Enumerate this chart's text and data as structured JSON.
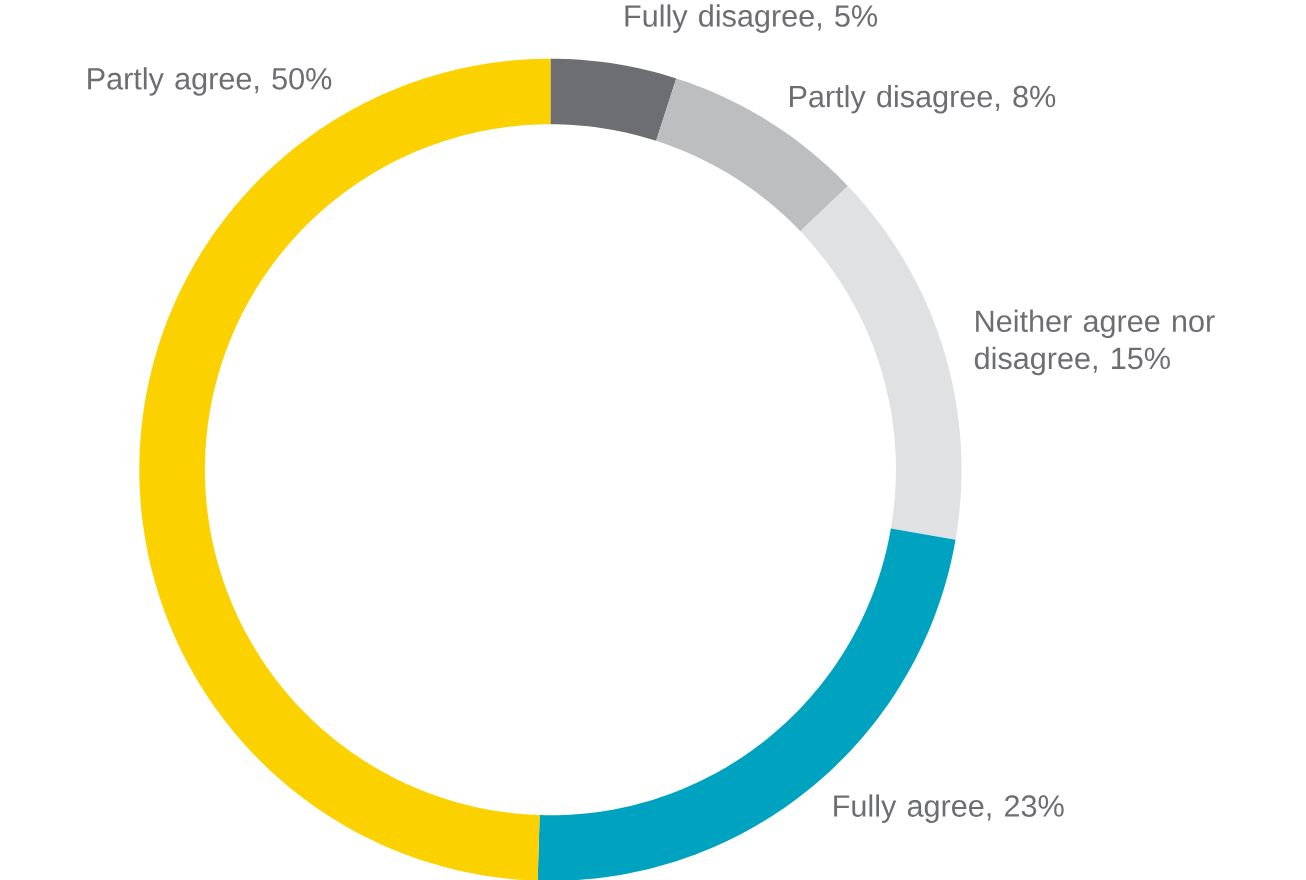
{
  "chart_data": {
    "type": "donut",
    "categories": [
      "Fully disagree, 5%",
      "Partly disagree, 8%",
      "Neither agree nor disagree, 15%",
      "Fully agree, 23%",
      "Partly agree, 50%"
    ],
    "values": [
      5,
      8,
      15,
      23,
      50
    ],
    "colors": [
      "#6d6e71",
      "#bcbec0",
      "#e0e1e3",
      "#00a3bf",
      "#fcd100"
    ]
  }
}
